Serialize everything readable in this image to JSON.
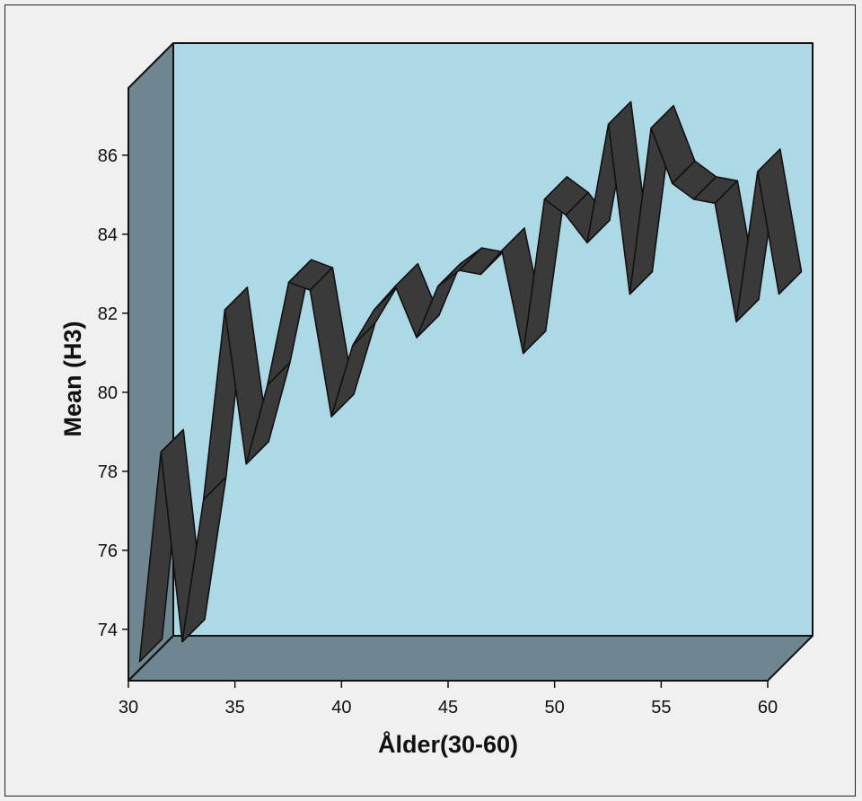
{
  "chart_data": {
    "type": "line",
    "style": "3d-ribbon",
    "xlabel": "Ålder(30-60)",
    "ylabel": "Mean (H3)",
    "xlim": [
      30,
      60
    ],
    "ylim": [
      72.7,
      87.7
    ],
    "x_ticks": [
      30,
      35,
      40,
      45,
      50,
      55,
      60
    ],
    "y_ticks": [
      74,
      76,
      78,
      80,
      82,
      84,
      86
    ],
    "grid": false,
    "colors": {
      "background": "#f0f0f0",
      "back_wall": "#add8e6",
      "side_wall": "#6e8690",
      "floor": "#6e8690",
      "ribbon": "#3a3a3a",
      "edge": "#111111"
    },
    "series": [
      {
        "x": [
          30,
          31,
          32,
          33,
          34,
          35,
          36,
          37,
          38,
          39,
          40,
          41,
          42,
          43,
          44,
          45,
          46,
          47,
          48,
          49,
          50,
          51,
          52,
          53,
          54,
          55,
          56,
          57,
          58,
          59,
          60
        ],
        "values": [
          72.9,
          78.2,
          73.4,
          77.0,
          81.8,
          77.9,
          79.9,
          82.5,
          82.3,
          79.1,
          80.9,
          81.8,
          82.4,
          81.1,
          82.4,
          82.8,
          82.7,
          83.3,
          80.7,
          84.6,
          84.2,
          83.5,
          86.5,
          82.2,
          86.4,
          85.0,
          84.6,
          84.5,
          81.5,
          85.3,
          82.2
        ]
      }
    ]
  }
}
